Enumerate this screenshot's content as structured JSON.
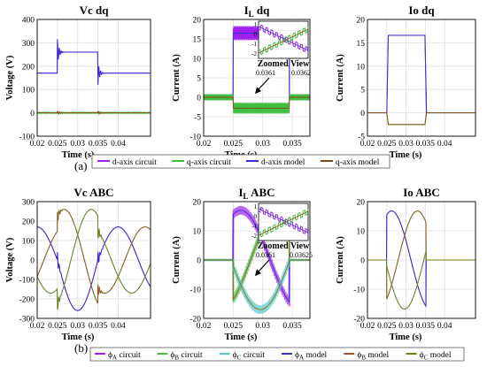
{
  "colors": {
    "d_circuit": "#a020f0",
    "q_circuit": "#3fbf3f",
    "d_model": "#3333cc",
    "q_model": "#8b4513",
    "phA_circuit": "#a020f0",
    "phB_circuit": "#3fbf3f",
    "phC_circuit": "#55c8c8",
    "phA_model": "#3333cc",
    "phB_model": "#a0522d",
    "phC_model": "#7a7a10",
    "grid": "#dddddd"
  },
  "panel_labels": {
    "a": "(a)",
    "b": "(b)"
  },
  "legend_a": [
    {
      "label": "d-axis circuit",
      "color": "#a020f0"
    },
    {
      "label": "q-axis circuit",
      "color": "#3fbf3f"
    },
    {
      "label": "d-axis model",
      "color": "#3333cc"
    },
    {
      "label": "q-axis model",
      "color": "#8b4513"
    }
  ],
  "legend_b": [
    {
      "sym": "ϕ",
      "sub": "A",
      "label": " circuit",
      "color": "#a020f0"
    },
    {
      "sym": "ϕ",
      "sub": "B",
      "label": " circuit",
      "color": "#3fbf3f"
    },
    {
      "sym": "ϕ",
      "sub": "C",
      "label": " circuit",
      "color": "#55c8c8"
    },
    {
      "sym": "ϕ",
      "sub": "A",
      "label": " model",
      "color": "#3333cc"
    },
    {
      "sym": "ϕ",
      "sub": "B",
      "label": " model",
      "color": "#a0522d"
    },
    {
      "sym": "ϕ",
      "sub": "C",
      "label": " model",
      "color": "#7a7a10"
    }
  ],
  "chart_data": [
    {
      "id": "vc_dq",
      "type": "line",
      "title": "Vc dq",
      "xlabel": "Time (s)",
      "ylabel": "Voltage (V)",
      "xlim": [
        0.02,
        0.048
      ],
      "ylim": [
        -100,
        400
      ],
      "xticks": [
        0.02,
        0.025,
        0.03,
        0.035,
        0.04
      ],
      "xticklabels": [
        "0.02",
        "0.025",
        "0.03",
        "0.035",
        "0.04"
      ],
      "yticks": [
        -100,
        0,
        100,
        200,
        300,
        400
      ],
      "yticklabels": [
        "-100",
        "0",
        "100",
        "200",
        "300",
        "400"
      ],
      "grid": true,
      "series": [
        {
          "kind": "step",
          "key": "d",
          "base": 170,
          "high": 260,
          "t_on": 0.025,
          "t_off": 0.035,
          "overshoot_on": 55,
          "overshoot_off": -50,
          "decay": 0.0004,
          "osc": 2200
        },
        {
          "kind": "step",
          "key": "q",
          "base": 0,
          "high": 0,
          "t_on": 0.025,
          "t_off": 0.035,
          "overshoot_on": 0,
          "overshoot_off": 0,
          "ripple": 8,
          "decay": 0.0006,
          "osc": 2200
        }
      ]
    },
    {
      "id": "il_dq",
      "type": "line",
      "title": "I",
      "title_sub": "L",
      "title_rest": " dq",
      "xlabel": "Time (s)",
      "ylabel": "Current (A)",
      "xlim": [
        0.02,
        0.038
      ],
      "ylim": [
        -10,
        20
      ],
      "xticks": [
        0.02,
        0.025,
        0.03,
        0.035
      ],
      "xticklabels": [
        "0.02",
        "0.025",
        "0.03",
        "0.035"
      ],
      "yticks": [
        -10,
        -5,
        0,
        5,
        10,
        15,
        20
      ],
      "yticklabels": [
        "-10",
        "-5",
        "0",
        "5",
        "10",
        "15",
        "20"
      ],
      "grid": true,
      "series": [
        {
          "kind": "band",
          "key": "d",
          "base": 0,
          "high": 16.5,
          "t_on": 0.025,
          "t_off": 0.0345,
          "band": 1.8
        },
        {
          "kind": "band",
          "key": "q",
          "base": 0,
          "high": -2.8,
          "t_on": 0.025,
          "t_off": 0.0345,
          "band": 1.4
        }
      ],
      "inset": {
        "xlabel": "Zoomed View",
        "xticklabels": [
          "0.0361",
          "0.0362"
        ],
        "yticklabels": [
          "1",
          "0",
          "-1",
          "-2"
        ]
      }
    },
    {
      "id": "io_dq",
      "type": "line",
      "title": "Io dq",
      "xlabel": "Time (s)",
      "ylabel": "Current (A)",
      "xlim": [
        0.02,
        0.048
      ],
      "ylim": [
        -5,
        20
      ],
      "xticks": [
        0.02,
        0.025,
        0.03,
        0.035,
        0.04
      ],
      "xticklabels": [
        "0.02",
        "0.025",
        "0.03",
        "0.035",
        "0.04"
      ],
      "yticks": [
        -5,
        0,
        5,
        10,
        15,
        20
      ],
      "yticklabels": [
        "-5",
        "0",
        "5",
        "10",
        "15",
        "20"
      ],
      "grid": true,
      "series": [
        {
          "kind": "ramp",
          "key": "d",
          "base": 0,
          "high": 16.6,
          "t_on": 0.025,
          "t_off": 0.0349,
          "rise": 0.0004
        },
        {
          "kind": "ramp",
          "key": "q",
          "base": 0,
          "high": -2.5,
          "t_on": 0.025,
          "t_off": 0.0349,
          "rise": 0.0004
        }
      ]
    },
    {
      "id": "vc_abc",
      "type": "line",
      "title": "Vc ABC",
      "xlabel": "Time (s)",
      "ylabel": "Voltage (V)",
      "xlim": [
        0.02,
        0.048
      ],
      "ylim": [
        -300,
        300
      ],
      "xticks": [
        0.02,
        0.025,
        0.03,
        0.035,
        0.04
      ],
      "xticklabels": [
        "0.02",
        "0.025",
        "0.03",
        "0.035",
        "0.04"
      ],
      "yticks": [
        -300,
        -200,
        -100,
        0,
        100,
        200,
        300
      ],
      "yticklabels": [
        "-300",
        "-200",
        "-100",
        "0",
        "100",
        "200",
        "300"
      ],
      "grid": true,
      "abc": {
        "amp_base": 170,
        "amp_high": 260,
        "t_on": 0.025,
        "t_off": 0.035,
        "f": 50,
        "phase0": 1.571
      }
    },
    {
      "id": "il_abc",
      "type": "line",
      "title": "I",
      "title_sub": "L",
      "title_rest": " ABC",
      "xlabel": "Time (s)",
      "ylabel": "Current (A)",
      "xlim": [
        0.02,
        0.038
      ],
      "ylim": [
        -20,
        20
      ],
      "xticks": [
        0.02,
        0.025,
        0.03,
        0.035
      ],
      "xticklabels": [
        "0.02",
        "0.025",
        "0.03",
        "0.035"
      ],
      "yticks": [
        -20,
        -10,
        0,
        10,
        20
      ],
      "yticklabels": [
        "-20",
        "-10",
        "0",
        "10",
        "20"
      ],
      "grid": true,
      "abc": {
        "amp_base": 0,
        "amp_high": 17,
        "t_on": 0.025,
        "t_off": 0.0345,
        "f": 50,
        "phase0": -0.4,
        "band": 1.5
      },
      "inset": {
        "xlabel": "Zoomed View",
        "xticklabels": [
          "0.0361",
          "0.03625"
        ],
        "yticklabels": [
          "1",
          "0",
          "-1",
          "-2"
        ]
      }
    },
    {
      "id": "io_abc",
      "type": "line",
      "title": "Io ABC",
      "xlabel": "Time (s)",
      "ylabel": "Current (A)",
      "xlim": [
        0.02,
        0.048
      ],
      "ylim": [
        -20,
        20
      ],
      "xticks": [
        0.02,
        0.025,
        0.03,
        0.035,
        0.04
      ],
      "xticklabels": [
        "0.02",
        "0.025",
        "0.03",
        "0.035",
        "0.04"
      ],
      "yticks": [
        -20,
        -10,
        0,
        10,
        20
      ],
      "yticklabels": [
        "-20",
        "-10",
        "0",
        "10",
        "20"
      ],
      "grid": true,
      "abc": {
        "amp_base": 0,
        "amp_high": 16.8,
        "t_on": 0.025,
        "t_off": 0.0352,
        "f": 50,
        "phase0": -0.4
      }
    }
  ]
}
